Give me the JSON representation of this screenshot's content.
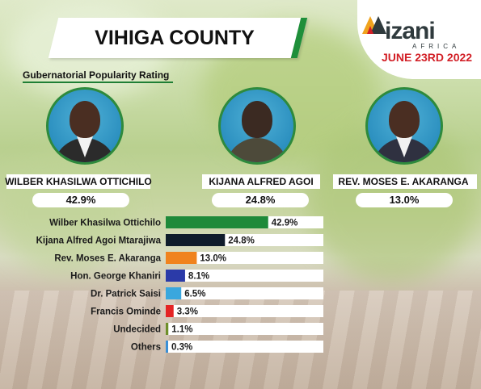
{
  "header": {
    "title": "VIHIGA COUNTY",
    "subtitle": "Gubernatorial Popularity Rating"
  },
  "brand": {
    "name": "izani",
    "tagline": "AFRICA",
    "date": "JUNE 23RD 2022",
    "accent_color": "#d21f26",
    "text_color": "#2f3a3d"
  },
  "featured": [
    {
      "name": "WILBER KHASILWA OTTICHILO",
      "pct": "42.9%"
    },
    {
      "name": "KIJANA ALFRED AGOI",
      "pct": "24.8%"
    },
    {
      "name": "REV. MOSES E. AKARANGA",
      "pct": "13.0%"
    }
  ],
  "chart_data": {
    "type": "bar",
    "orientation": "horizontal",
    "categories": [
      "Wilber Khasilwa Ottichilo",
      "Kijana Alfred Agoi Mtarajiwa",
      "Rev. Moses E. Akaranga",
      "Hon. George Khaniri",
      "Dr. Patrick Saisi",
      "Francis Ominde",
      "Undecided",
      "Others"
    ],
    "values": [
      42.9,
      24.8,
      13.0,
      8.1,
      6.5,
      3.3,
      1.1,
      0.3
    ],
    "labels": [
      "42.9%",
      "24.8%",
      "13.0%",
      "8.1%",
      "6.5%",
      "3.3%",
      "1.1%",
      "0.3%"
    ],
    "colors": [
      "#1e8a3a",
      "#0f1c2b",
      "#f0831e",
      "#2b3aa8",
      "#3aa7de",
      "#e42424",
      "#6f8f2a",
      "#3a8fd6"
    ],
    "xlim": [
      0,
      66
    ],
    "grid": false
  }
}
